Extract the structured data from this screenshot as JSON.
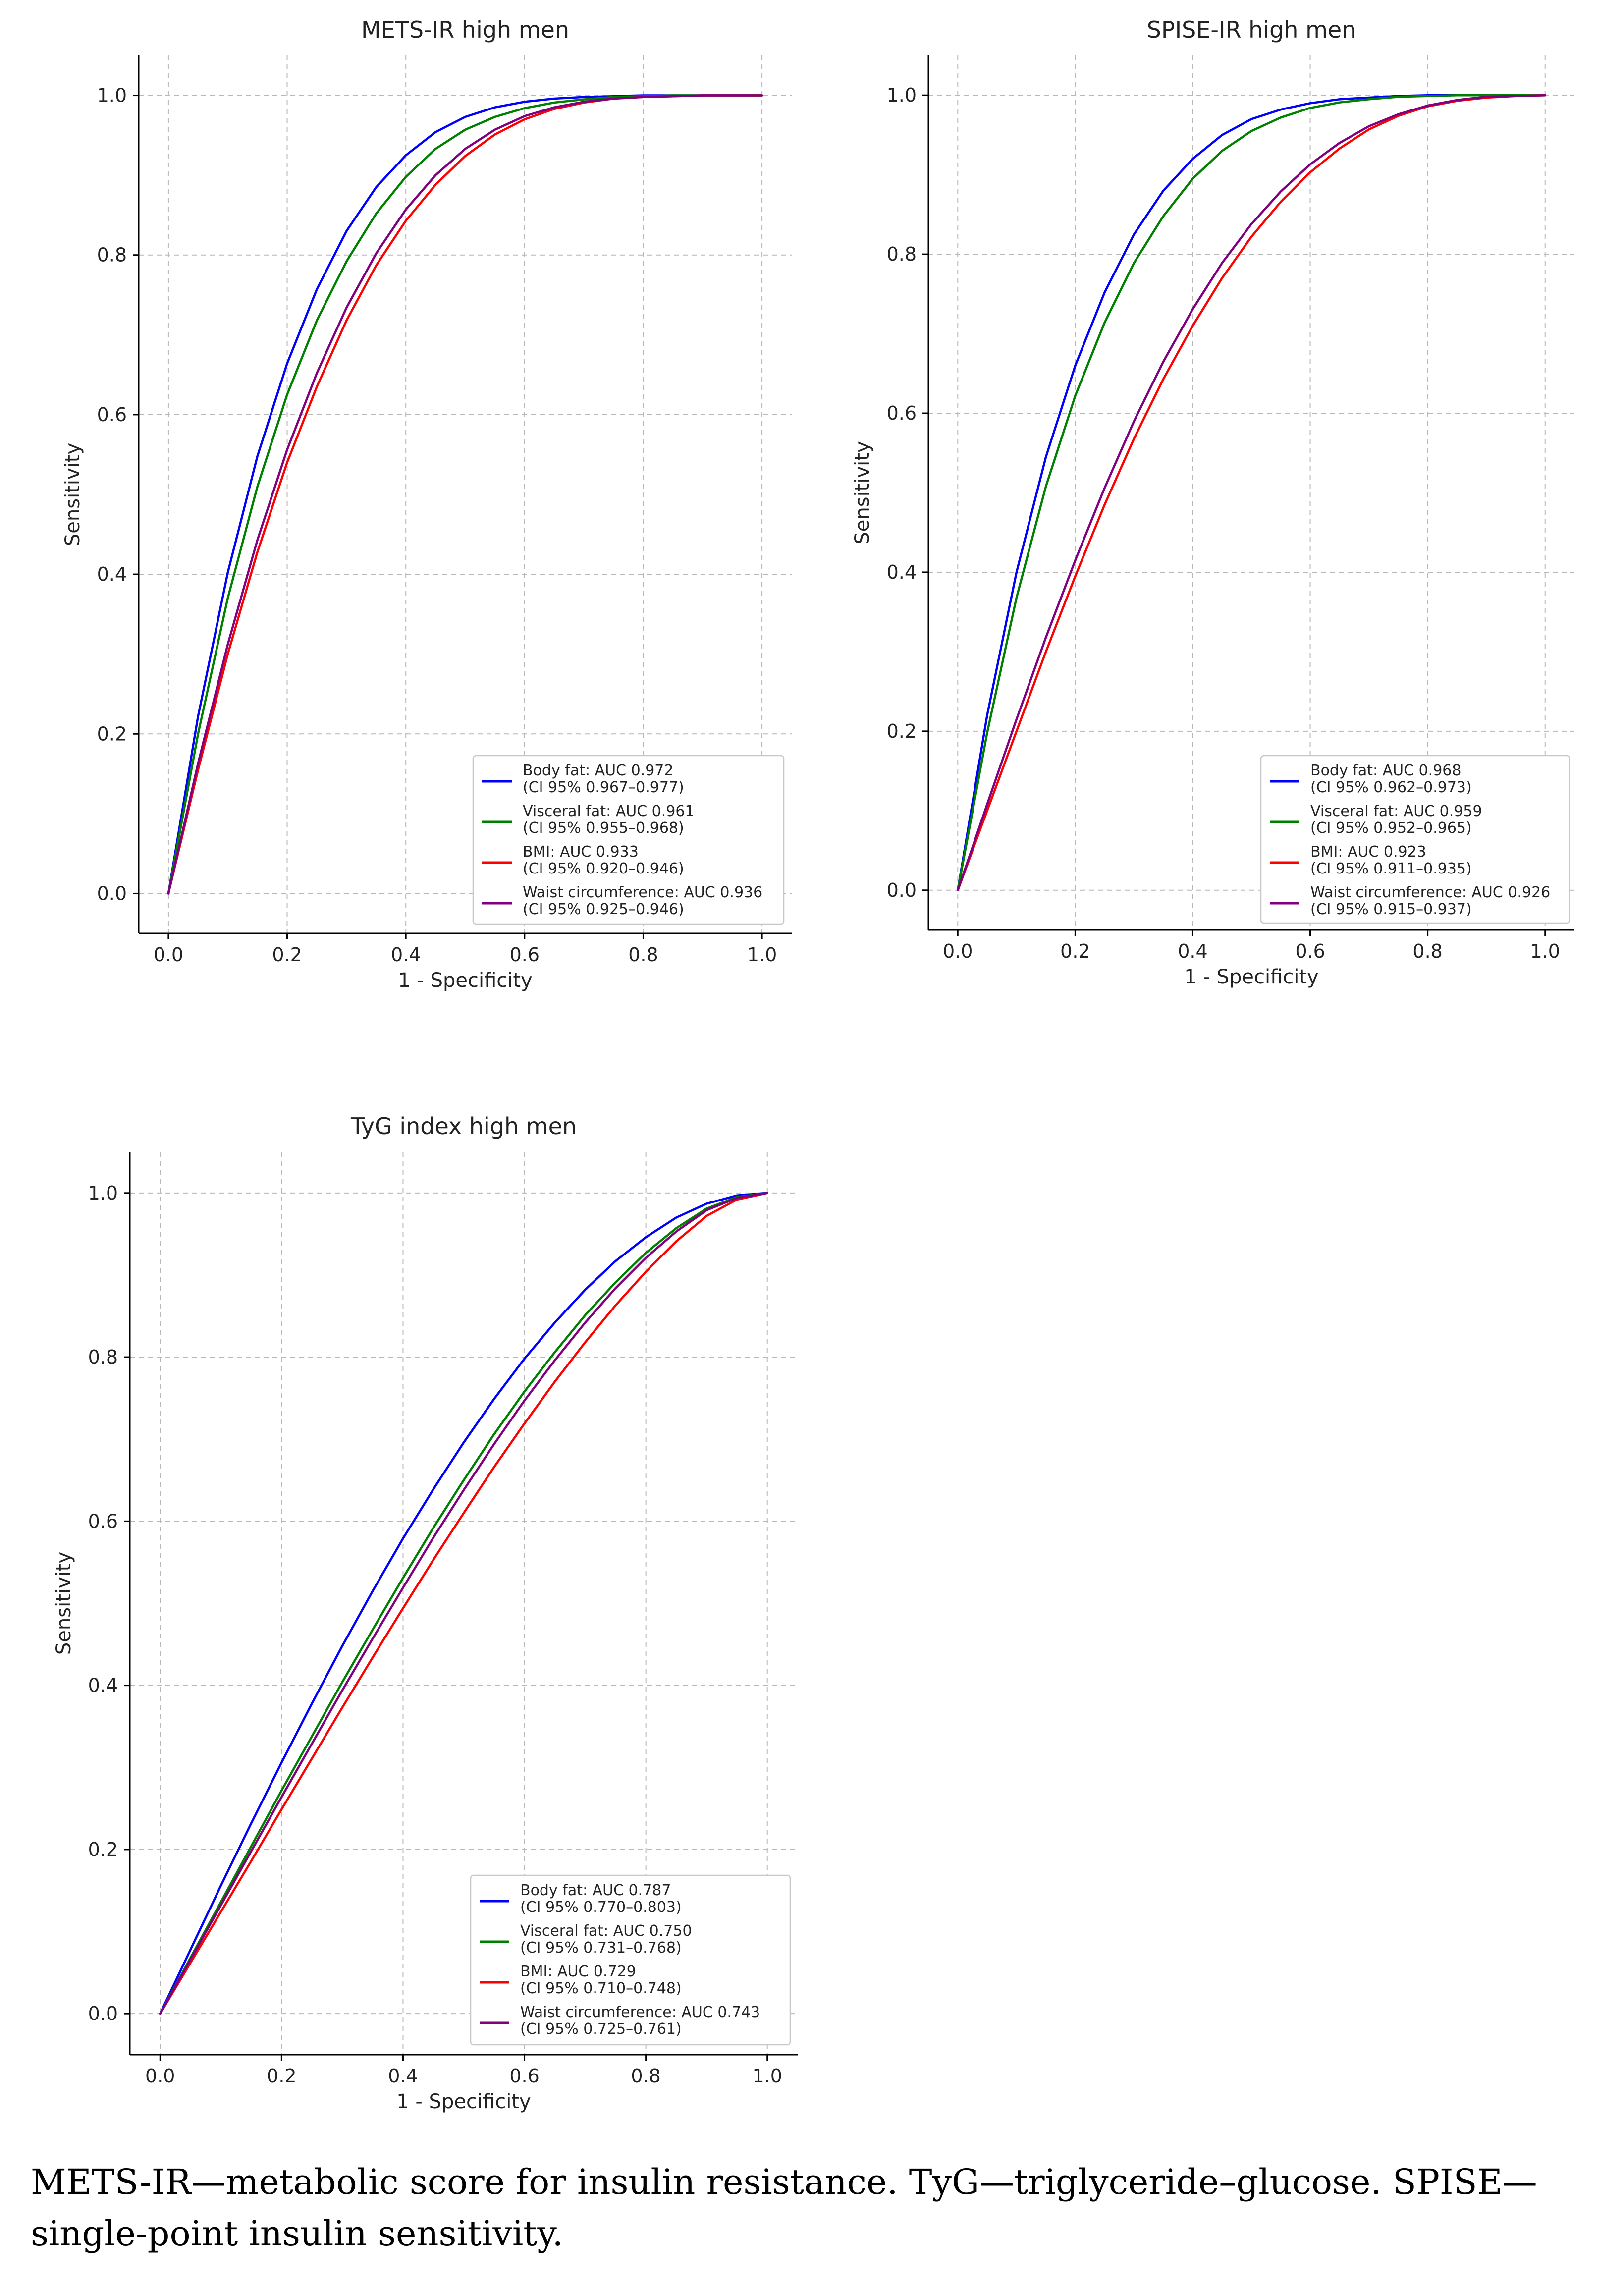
{
  "chart_data": [
    {
      "type": "line",
      "title": "METS-IR high men",
      "xlabel": "1 - Specificity",
      "ylabel": "Sensitivity",
      "xlim": [
        -0.05,
        1.05
      ],
      "ylim": [
        -0.05,
        1.05
      ],
      "xticks": [
        "0.0",
        "0.2",
        "0.4",
        "0.6",
        "0.8",
        "1.0"
      ],
      "yticks": [
        "0.0",
        "0.2",
        "0.4",
        "0.6",
        "0.8",
        "1.0"
      ],
      "grid": true,
      "legend_position": "lower-right",
      "x": [
        0,
        0.05,
        0.1,
        0.15,
        0.2,
        0.25,
        0.3,
        0.35,
        0.4,
        0.45,
        0.5,
        0.55,
        0.6,
        0.65,
        0.7,
        0.75,
        0.8,
        0.85,
        0.9,
        0.95,
        1.0
      ],
      "series": [
        {
          "name": "Body fat",
          "legend_line1": "Body fat: AUC 0.972",
          "legend_line2": "(CI 95% 0.967–0.977)",
          "color": "#0000ff",
          "values": [
            0,
            0.222,
            0.402,
            0.548,
            0.664,
            0.757,
            0.83,
            0.885,
            0.925,
            0.954,
            0.973,
            0.985,
            0.992,
            0.996,
            0.998,
            0.999,
            1.0,
            1.0,
            1.0,
            1.0,
            1.0
          ]
        },
        {
          "name": "Visceral fat",
          "legend_line1": "Visceral fat: AUC 0.961",
          "legend_line2": "(CI 95% 0.955–0.968)",
          "color": "#008000",
          "values": [
            0,
            0.2,
            0.37,
            0.51,
            0.625,
            0.718,
            0.792,
            0.852,
            0.898,
            0.933,
            0.957,
            0.973,
            0.984,
            0.991,
            0.995,
            0.998,
            0.999,
            1.0,
            1.0,
            1.0,
            1.0
          ]
        },
        {
          "name": "BMI",
          "legend_line1": "BMI: AUC 0.933",
          "legend_line2": "(CI 95% 0.920–0.946)",
          "color": "#ff0000",
          "values": [
            0,
            0.155,
            0.3,
            0.428,
            0.54,
            0.635,
            0.718,
            0.787,
            0.843,
            0.888,
            0.924,
            0.951,
            0.97,
            0.983,
            0.991,
            0.996,
            0.998,
            0.999,
            1.0,
            1.0,
            1.0
          ]
        },
        {
          "name": "Waist circumference",
          "legend_line1": "Waist circumference: AUC 0.936",
          "legend_line2": "(CI 95% 0.925–0.946)",
          "color": "#800080",
          "values": [
            0,
            0.163,
            0.312,
            0.443,
            0.556,
            0.652,
            0.734,
            0.802,
            0.857,
            0.9,
            0.933,
            0.957,
            0.974,
            0.985,
            0.992,
            0.996,
            0.998,
            0.999,
            1.0,
            1.0,
            1.0
          ]
        }
      ]
    },
    {
      "type": "line",
      "title": "SPISE-IR high men",
      "xlabel": "1 - Specificity",
      "ylabel": "Sensitivity",
      "xlim": [
        -0.05,
        1.05
      ],
      "ylim": [
        -0.05,
        1.05
      ],
      "xticks": [
        "0.0",
        "0.2",
        "0.4",
        "0.6",
        "0.8",
        "1.0"
      ],
      "yticks": [
        "0.0",
        "0.2",
        "0.4",
        "0.6",
        "0.8",
        "1.0"
      ],
      "grid": true,
      "legend_position": "lower-right",
      "x": [
        0,
        0.05,
        0.1,
        0.15,
        0.2,
        0.25,
        0.3,
        0.35,
        0.4,
        0.45,
        0.5,
        0.55,
        0.6,
        0.65,
        0.7,
        0.75,
        0.8,
        0.85,
        0.9,
        0.95,
        1.0
      ],
      "series": [
        {
          "name": "Body fat",
          "legend_line1": "Body fat: AUC 0.968",
          "legend_line2": "(CI 95% 0.962–0.973)",
          "color": "#0000ff",
          "values": [
            0,
            0.22,
            0.4,
            0.545,
            0.66,
            0.752,
            0.825,
            0.88,
            0.92,
            0.95,
            0.97,
            0.982,
            0.99,
            0.995,
            0.997,
            0.999,
            1.0,
            1.0,
            1.0,
            1.0,
            1.0
          ]
        },
        {
          "name": "Visceral fat",
          "legend_line1": "Visceral fat: AUC 0.959",
          "legend_line2": "(CI 95% 0.952–0.965)",
          "color": "#008000",
          "values": [
            0,
            0.198,
            0.368,
            0.508,
            0.622,
            0.714,
            0.789,
            0.848,
            0.895,
            0.93,
            0.955,
            0.972,
            0.984,
            0.991,
            0.995,
            0.998,
            0.999,
            1.0,
            1.0,
            1.0,
            1.0
          ]
        },
        {
          "name": "BMI",
          "legend_line1": "BMI: AUC 0.923",
          "legend_line2": "(CI 95% 0.911–0.935)",
          "color": "#ff0000",
          "values": [
            0,
            0.1,
            0.2,
            0.3,
            0.395,
            0.485,
            0.568,
            0.643,
            0.71,
            0.77,
            0.822,
            0.866,
            0.903,
            0.933,
            0.957,
            0.974,
            0.986,
            0.993,
            0.997,
            0.999,
            1.0
          ]
        },
        {
          "name": "Waist circumference",
          "legend_line1": "Waist circumference: AUC 0.926",
          "legend_line2": "(CI 95% 0.915–0.937)",
          "color": "#800080",
          "values": [
            0,
            0.108,
            0.215,
            0.318,
            0.415,
            0.506,
            0.59,
            0.665,
            0.731,
            0.789,
            0.838,
            0.879,
            0.913,
            0.94,
            0.961,
            0.976,
            0.987,
            0.994,
            0.998,
            0.999,
            1.0
          ]
        }
      ]
    },
    {
      "type": "line",
      "title": "TyG index high men",
      "xlabel": "1 - Specificity",
      "ylabel": "Sensitivity",
      "xlim": [
        -0.05,
        1.05
      ],
      "ylim": [
        -0.05,
        1.05
      ],
      "xticks": [
        "0.0",
        "0.2",
        "0.4",
        "0.6",
        "0.8",
        "1.0"
      ],
      "yticks": [
        "0.0",
        "0.2",
        "0.4",
        "0.6",
        "0.8",
        "1.0"
      ],
      "grid": true,
      "legend_position": "lower-right",
      "x": [
        0,
        0.05,
        0.1,
        0.15,
        0.2,
        0.25,
        0.3,
        0.35,
        0.4,
        0.45,
        0.5,
        0.55,
        0.6,
        0.65,
        0.7,
        0.75,
        0.8,
        0.85,
        0.9,
        0.95,
        1.0
      ],
      "series": [
        {
          "name": "Body fat",
          "legend_line1": "Body fat: AUC 0.787",
          "legend_line2": "(CI 95% 0.770–0.803)",
          "color": "#0000ff",
          "values": [
            0,
            0.078,
            0.156,
            0.232,
            0.306,
            0.378,
            0.448,
            0.515,
            0.579,
            0.639,
            0.696,
            0.749,
            0.798,
            0.842,
            0.882,
            0.917,
            0.946,
            0.97,
            0.987,
            0.997,
            1.0
          ]
        },
        {
          "name": "Visceral fat",
          "legend_line1": "Visceral fat: AUC 0.750",
          "legend_line2": "(CI 95% 0.731–0.768)",
          "color": "#008000",
          "values": [
            0,
            0.068,
            0.136,
            0.204,
            0.272,
            0.338,
            0.404,
            0.468,
            0.531,
            0.592,
            0.65,
            0.706,
            0.758,
            0.806,
            0.851,
            0.891,
            0.927,
            0.957,
            0.981,
            0.995,
            1.0
          ]
        },
        {
          "name": "BMI",
          "legend_line1": "BMI: AUC 0.729",
          "legend_line2": "(CI 95% 0.710–0.748)",
          "color": "#ff0000",
          "values": [
            0,
            0.062,
            0.124,
            0.186,
            0.249,
            0.311,
            0.373,
            0.434,
            0.494,
            0.553,
            0.61,
            0.666,
            0.719,
            0.77,
            0.818,
            0.863,
            0.904,
            0.941,
            0.972,
            0.992,
            1.0
          ]
        },
        {
          "name": "Waist circumference",
          "legend_line1": "Waist circumference: AUC 0.743",
          "legend_line2": "(CI 95% 0.725–0.761)",
          "color": "#800080",
          "values": [
            0,
            0.066,
            0.132,
            0.198,
            0.264,
            0.329,
            0.394,
            0.457,
            0.519,
            0.58,
            0.638,
            0.694,
            0.747,
            0.796,
            0.842,
            0.884,
            0.921,
            0.953,
            0.979,
            0.994,
            1.0
          ]
        }
      ]
    }
  ],
  "caption": "METS-IR—metabolic score for insulin resistance. TyG—triglyceride–glucose. SPISE—single-point insulin sensitivity."
}
